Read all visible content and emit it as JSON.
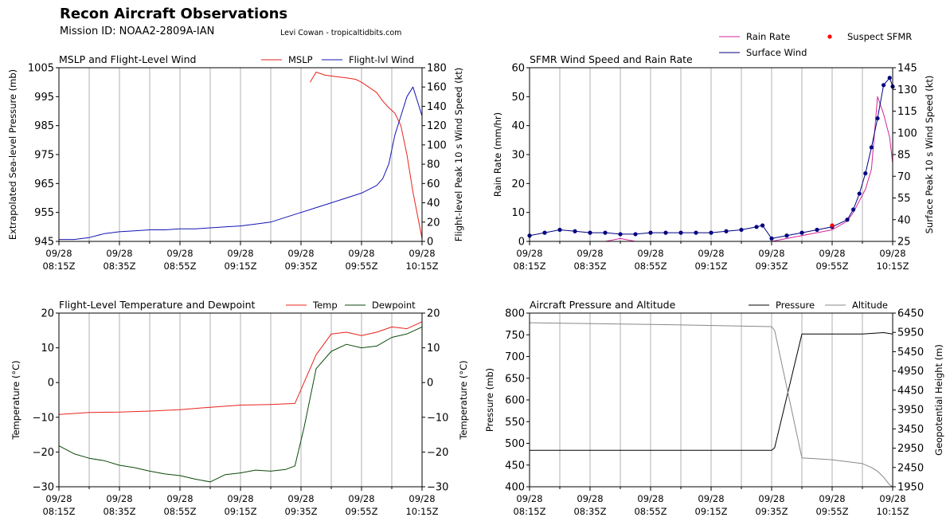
{
  "header": {
    "title": "Recon Aircraft Observations",
    "mission": "Mission ID: NOAA2-2809A-IAN",
    "credit": "Levi Cowan - tropicaltidbits.com"
  },
  "colors": {
    "mslp": "#e8231c",
    "wind": "#1414b4",
    "rain": "#d6249a",
    "sfmr": "#000080",
    "suspect": "#ff0000",
    "temp": "#e8231c",
    "dew": "#0a4a0a",
    "pressure": "#000000",
    "altitude": "#888888",
    "grid": "#b0b0b0"
  },
  "x_ticks": [
    [
      "09/28",
      "08:15Z"
    ],
    [
      "09/28",
      "08:35Z"
    ],
    [
      "09/28",
      "08:55Z"
    ],
    [
      "09/28",
      "09:15Z"
    ],
    [
      "09/28",
      "09:35Z"
    ],
    [
      "09/28",
      "09:55Z"
    ],
    [
      "09/28",
      "10:15Z"
    ]
  ],
  "chart_data": [
    {
      "type": "line",
      "title": "MSLP and Flight-Level Wind",
      "xlim": [
        "2022-09-28 08:15",
        "2022-09-28 10:15"
      ],
      "ylabel": "Extrapolated Sea-level Pressure (mb)",
      "ylim": [
        945,
        1005
      ],
      "yticks": [
        945,
        955,
        965,
        975,
        985,
        995,
        1005
      ],
      "y2label": "Flight-level Peak 10 s Wind Speed (kt)",
      "y2lim": [
        0,
        180
      ],
      "y2ticks": [
        0,
        20,
        40,
        60,
        80,
        100,
        120,
        140,
        160,
        180
      ],
      "legend_position": "top-right",
      "series": [
        {
          "name": "MSLP",
          "axis": "left",
          "x": [
            "08:15",
            "08:20",
            "08:25",
            "08:30",
            "08:35",
            "08:40",
            "08:45",
            "08:50",
            "08:55",
            "09:00",
            "09:05",
            "09:10",
            "09:15",
            "09:20",
            "09:25",
            "09:30",
            "09:35",
            "09:38",
            "09:40",
            "09:43",
            "09:46",
            "09:50",
            "09:53",
            "09:55",
            "09:57",
            "10:00",
            "10:02",
            "10:04",
            "10:06",
            "10:08",
            "10:10",
            "10:12",
            "10:15"
          ],
          "y": [
            null,
            null,
            null,
            null,
            null,
            null,
            null,
            null,
            null,
            null,
            null,
            null,
            null,
            null,
            null,
            null,
            null,
            1000,
            1003.5,
            1002.4,
            1002,
            1001.5,
            1001,
            1000,
            998.6,
            996.4,
            993.5,
            991.2,
            989.3,
            985,
            975,
            962,
            946
          ]
        },
        {
          "name": "Flight-lvl Wind",
          "axis": "right",
          "x": [
            "08:15",
            "08:20",
            "08:25",
            "08:30",
            "08:35",
            "08:40",
            "08:45",
            "08:50",
            "08:55",
            "09:00",
            "09:05",
            "09:10",
            "09:15",
            "09:20",
            "09:25",
            "09:30",
            "09:35",
            "09:40",
            "09:45",
            "09:50",
            "09:55",
            "10:00",
            "10:02",
            "10:04",
            "10:06",
            "10:08",
            "10:10",
            "10:12",
            "10:14",
            "10:15"
          ],
          "y": [
            2,
            2,
            4,
            8,
            10,
            11,
            12,
            12,
            13,
            13,
            14,
            15,
            16,
            18,
            20,
            25,
            30,
            35,
            40,
            45,
            50,
            58,
            65,
            80,
            110,
            130,
            150,
            160,
            140,
            130
          ]
        }
      ]
    },
    {
      "type": "line",
      "title": "SFMR Wind Speed and Rain Rate",
      "xlim": [
        "2022-09-28 08:15",
        "2022-09-28 10:15"
      ],
      "ylabel": "Rain Rate (mm/hr)",
      "ylim": [
        0,
        60
      ],
      "yticks": [
        0,
        10,
        20,
        30,
        40,
        50,
        60
      ],
      "y2label": "Surface Peak 10 s Wind Speed (kt)",
      "y2lim": [
        25,
        145
      ],
      "y2ticks": [
        25,
        40,
        55,
        70,
        85,
        100,
        115,
        130,
        145
      ],
      "legend_position": "above-top-right",
      "series": [
        {
          "name": "Rain Rate",
          "axis": "left",
          "x": [
            "08:15",
            "08:40",
            "08:45",
            "08:50",
            "09:00",
            "09:10",
            "09:20",
            "09:30",
            "09:35",
            "09:40",
            "09:45",
            "09:50",
            "09:55",
            "10:00",
            "10:02",
            "10:04",
            "10:06",
            "10:08",
            "10:10",
            "10:12",
            "10:14",
            "10:15"
          ],
          "y": [
            0,
            0,
            1,
            0,
            0,
            0,
            0,
            0,
            0,
            1,
            2,
            3,
            4,
            7,
            10,
            14,
            18,
            25,
            50,
            44,
            36,
            27
          ]
        },
        {
          "name": "Surface Wind",
          "axis": "right",
          "x": [
            "08:15",
            "08:20",
            "08:25",
            "08:30",
            "08:35",
            "08:40",
            "08:45",
            "08:50",
            "08:55",
            "09:00",
            "09:05",
            "09:10",
            "09:15",
            "09:20",
            "09:25",
            "09:30",
            "09:32",
            "09:35",
            "09:40",
            "09:45",
            "09:50",
            "09:55",
            "10:00",
            "10:02",
            "10:04",
            "10:06",
            "10:08",
            "10:10",
            "10:12",
            "10:14",
            "10:15"
          ],
          "y": [
            29,
            31,
            33,
            32,
            31,
            31,
            30,
            30,
            31,
            31,
            31,
            31,
            31,
            32,
            33,
            35,
            36,
            27,
            29,
            31,
            33,
            35,
            40,
            47,
            58,
            72,
            90,
            110,
            133,
            138,
            132
          ]
        },
        {
          "name": "Suspect SFMR",
          "axis": "right",
          "x": [
            "09:55"
          ],
          "y": [
            36
          ]
        }
      ]
    },
    {
      "type": "line",
      "title": "Flight-Level Temperature and Dewpoint",
      "xlim": [
        "2022-09-28 08:15",
        "2022-09-28 10:15"
      ],
      "ylabel": "Temperature ( $^\\circ C$)",
      "ylim": [
        -30,
        20
      ],
      "yticks": [
        -30,
        -20,
        -10,
        0,
        10,
        20
      ],
      "y2label": "Temperature ( $^\\circ C$)",
      "legend_position": "top-right",
      "series": [
        {
          "name": "Temp",
          "x": [
            "08:15",
            "08:25",
            "08:35",
            "08:45",
            "08:55",
            "09:05",
            "09:15",
            "09:25",
            "09:33",
            "09:35",
            "09:40",
            "09:45",
            "09:50",
            "09:55",
            "10:00",
            "10:05",
            "10:10",
            "10:15"
          ],
          "y": [
            -9.2,
            -8.6,
            -8.5,
            -8.2,
            -7.8,
            -7.1,
            -6.5,
            -6.3,
            -6.0,
            -2,
            8,
            14,
            14.5,
            13.5,
            14.5,
            16,
            15.5,
            17.5
          ]
        },
        {
          "name": "Dewpoint",
          "x": [
            "08:15",
            "08:20",
            "08:25",
            "08:30",
            "08:35",
            "08:40",
            "08:45",
            "08:50",
            "08:55",
            "09:00",
            "09:05",
            "09:10",
            "09:15",
            "09:20",
            "09:25",
            "09:30",
            "09:33",
            "09:36",
            "09:40",
            "09:45",
            "09:50",
            "09:55",
            "10:00",
            "10:05",
            "10:10",
            "10:15"
          ],
          "y": [
            -18.2,
            -20.5,
            -21.8,
            -22.5,
            -23.8,
            -24.5,
            -25.5,
            -26.3,
            -26.8,
            -27.8,
            -28.6,
            -26.5,
            -26.0,
            -25.2,
            -25.5,
            -25.0,
            -24.0,
            -13.0,
            4,
            9,
            11,
            10,
            10.5,
            13,
            14,
            16
          ]
        }
      ]
    },
    {
      "type": "line",
      "title": "Aircraft Pressure and Altitude",
      "xlim": [
        "2022-09-28 08:15",
        "2022-09-28 10:15"
      ],
      "ylabel": "Pressure (mb)",
      "ylim": [
        400,
        800
      ],
      "yticks": [
        400,
        450,
        500,
        550,
        600,
        650,
        700,
        750,
        800
      ],
      "y2label": "Geopotential Height (m)",
      "y2lim": [
        1950,
        6450
      ],
      "y2ticks": [
        1950,
        2450,
        2950,
        3450,
        3950,
        4450,
        4950,
        5450,
        5950,
        6450
      ],
      "legend_position": "top-right",
      "series": [
        {
          "name": "Pressure",
          "axis": "left",
          "x": [
            "08:15",
            "09:00",
            "09:35",
            "09:36",
            "09:45",
            "09:55",
            "10:05",
            "10:12",
            "10:15"
          ],
          "y": [
            484,
            484,
            484,
            490,
            752,
            752,
            752,
            755,
            752
          ]
        },
        {
          "name": "Altitude",
          "axis": "right",
          "x": [
            "08:15",
            "09:00",
            "09:35",
            "09:36",
            "09:45",
            "09:55",
            "10:00",
            "10:05",
            "10:08",
            "10:10",
            "10:12",
            "10:14",
            "10:15"
          ],
          "y": [
            6200,
            6150,
            6100,
            6000,
            2700,
            2650,
            2600,
            2550,
            2450,
            2350,
            2200,
            2000,
            1950
          ]
        }
      ]
    }
  ]
}
